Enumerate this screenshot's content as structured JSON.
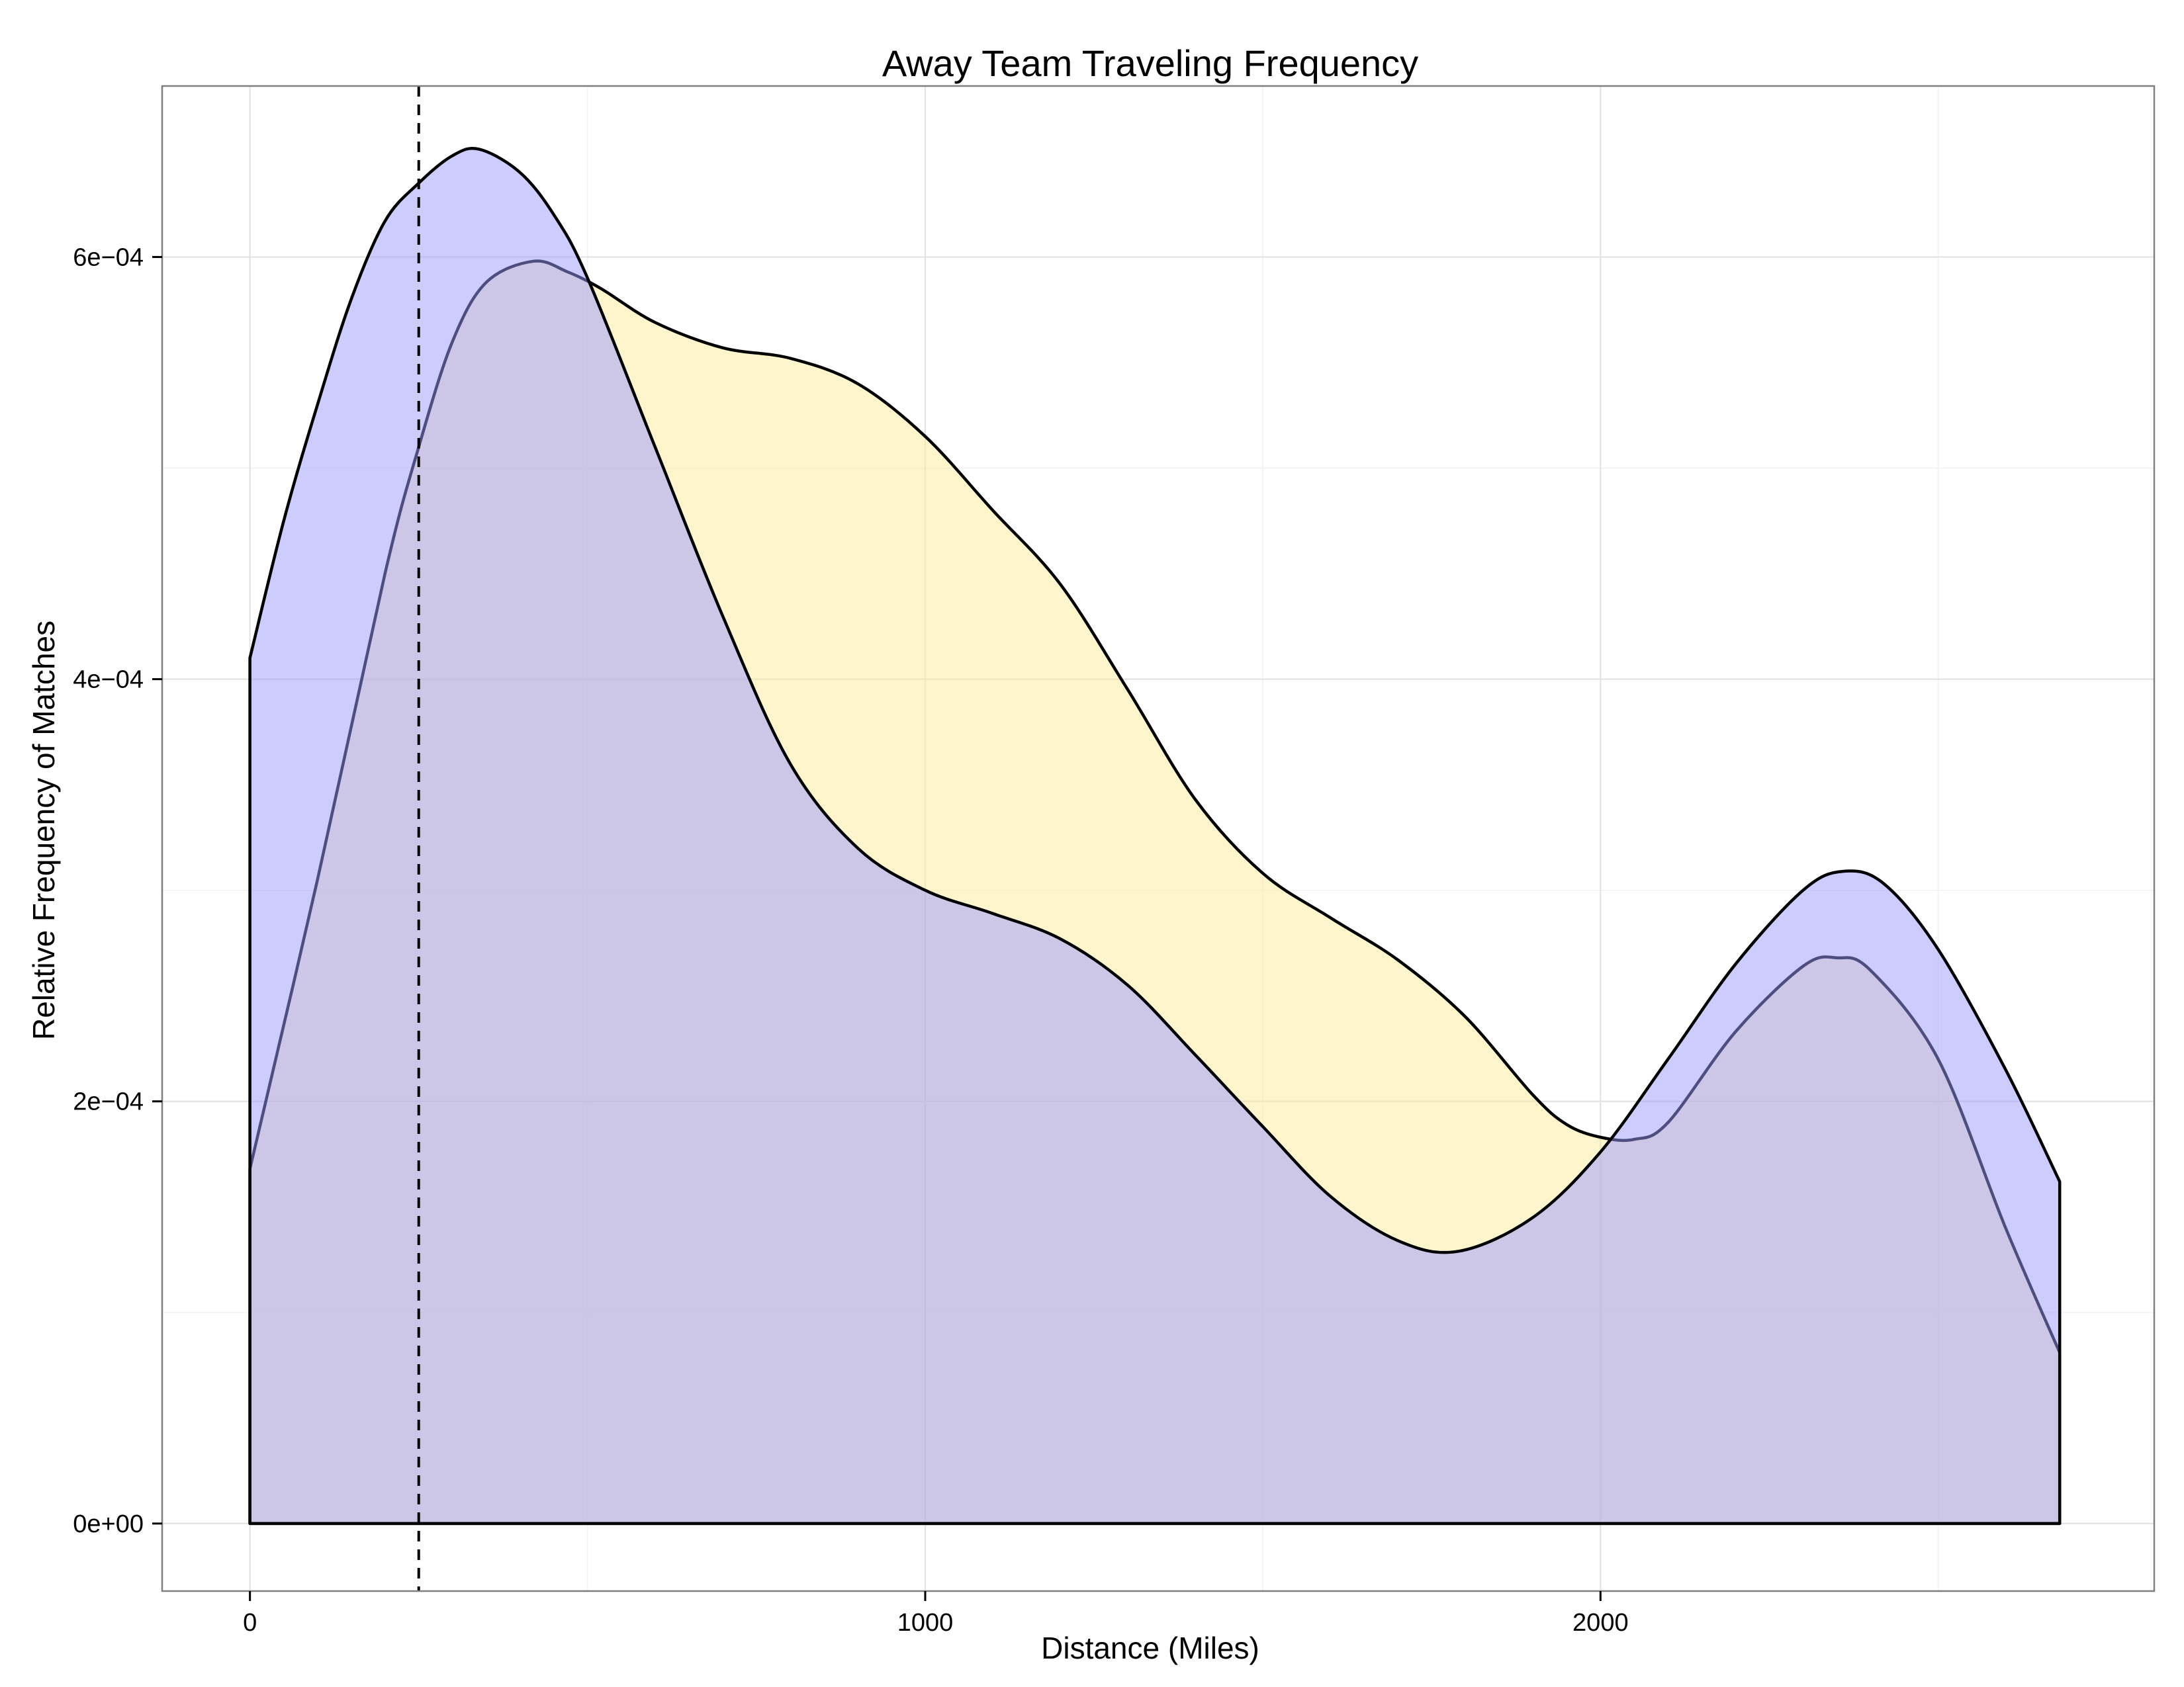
{
  "chart_data": {
    "type": "area",
    "title": "Away Team Traveling Frequency",
    "xlabel": "Distance (Miles)",
    "ylabel": "Relative Frequency of Matches",
    "xlim": [
      -130,
      2820
    ],
    "ylim": [
      -3.2e-05,
      0.000681
    ],
    "x_ticks": [
      {
        "value": 0,
        "label": "0"
      },
      {
        "value": 1000,
        "label": "1000"
      },
      {
        "value": 2000,
        "label": "2000"
      }
    ],
    "y_ticks": [
      {
        "value": 0,
        "label": "0e+00"
      },
      {
        "value": 0.0002,
        "label": "2e−04"
      },
      {
        "value": 0.0004,
        "label": "4e−04"
      },
      {
        "value": 0.0006,
        "label": "6e−04"
      }
    ],
    "x_minor_grid": [
      500,
      1500,
      2500
    ],
    "y_minor_grid": [
      0.0001,
      0.0003,
      0.0005
    ],
    "grid": true,
    "legend": "none",
    "reference_line": {
      "x": 250,
      "style": "dashed",
      "color": "#000000"
    },
    "series": [
      {
        "color": "#ffeb99",
        "opacity": 0.5,
        "points": [
          [
            0,
            0.000168
          ],
          [
            100,
            0.000305
          ],
          [
            200,
            0.00045
          ],
          [
            250,
            0.00051
          ],
          [
            300,
            0.00056
          ],
          [
            350,
            0.000588
          ],
          [
            420,
            0.000598
          ],
          [
            470,
            0.000593
          ],
          [
            520,
            0.000585
          ],
          [
            600,
            0.000569
          ],
          [
            700,
            0.000557
          ],
          [
            800,
            0.000552
          ],
          [
            900,
            0.00054
          ],
          [
            1000,
            0.000515
          ],
          [
            1100,
            0.00048
          ],
          [
            1200,
            0.000445
          ],
          [
            1300,
            0.000395
          ],
          [
            1400,
            0.000343
          ],
          [
            1500,
            0.000308
          ],
          [
            1600,
            0.000287
          ],
          [
            1700,
            0.000267
          ],
          [
            1800,
            0.00024
          ],
          [
            1900,
            0.000203
          ],
          [
            1950,
            0.000189
          ],
          [
            2000,
            0.000183
          ],
          [
            2050,
            0.000182
          ],
          [
            2100,
            0.00019
          ],
          [
            2200,
            0.000233
          ],
          [
            2300,
            0.000264
          ],
          [
            2350,
            0.000268
          ],
          [
            2400,
            0.000262
          ],
          [
            2500,
            0.00022
          ],
          [
            2600,
            0.00014
          ],
          [
            2680,
            8.1e-05
          ]
        ]
      },
      {
        "color": "#9999ff",
        "opacity": 0.5,
        "points": [
          [
            0,
            0.00041
          ],
          [
            50,
            0.000475
          ],
          [
            100,
            0.00053
          ],
          [
            150,
            0.00058
          ],
          [
            200,
            0.000617
          ],
          [
            250,
            0.000635
          ],
          [
            300,
            0.000648
          ],
          [
            340,
            0.000651
          ],
          [
            400,
            0.00064
          ],
          [
            450,
            0.00062
          ],
          [
            500,
            0.00059
          ],
          [
            600,
            0.00051
          ],
          [
            700,
            0.00043
          ],
          [
            800,
            0.00036
          ],
          [
            900,
            0.00032
          ],
          [
            1000,
            0.0003
          ],
          [
            1100,
            0.000289
          ],
          [
            1200,
            0.000277
          ],
          [
            1300,
            0.000255
          ],
          [
            1400,
            0.000222
          ],
          [
            1500,
            0.000188
          ],
          [
            1600,
            0.000155
          ],
          [
            1700,
            0.000134
          ],
          [
            1790,
            0.000129
          ],
          [
            1900,
            0.000145
          ],
          [
            2000,
            0.000176
          ],
          [
            2100,
            0.00022
          ],
          [
            2200,
            0.000265
          ],
          [
            2300,
            0.0003
          ],
          [
            2360,
            0.000309
          ],
          [
            2420,
            0.000303
          ],
          [
            2500,
            0.000272
          ],
          [
            2600,
            0.000215
          ],
          [
            2680,
            0.000162
          ]
        ]
      }
    ]
  }
}
